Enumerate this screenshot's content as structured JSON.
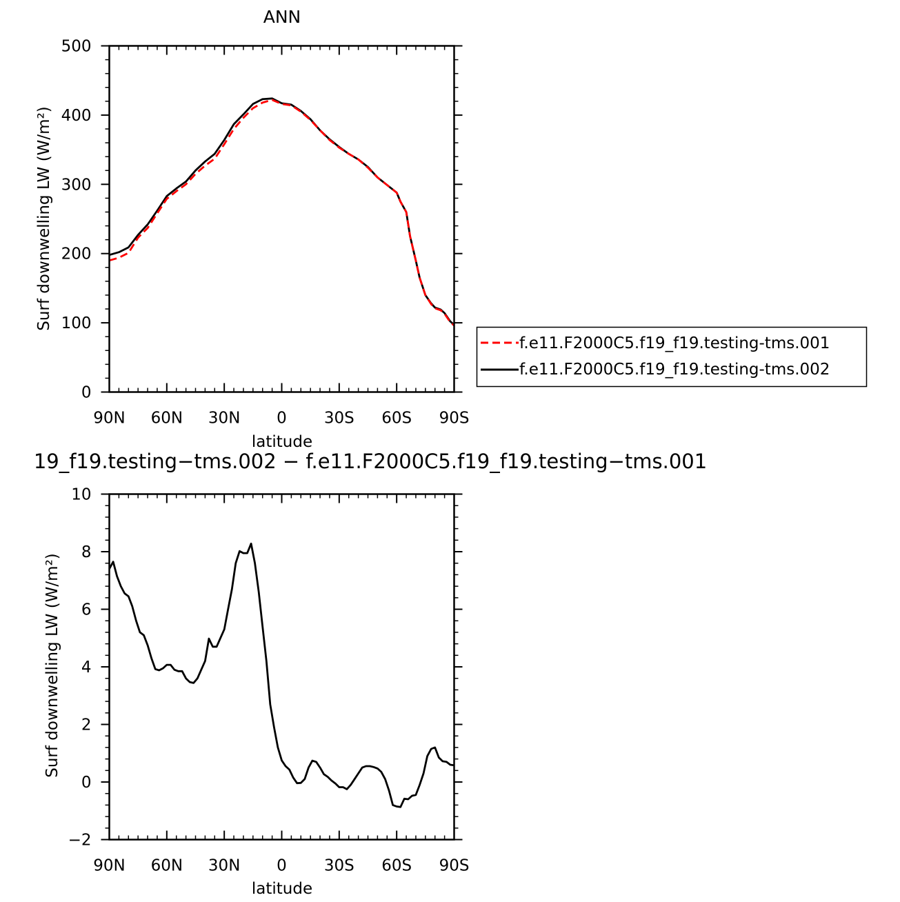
{
  "chart_data": [
    {
      "type": "line",
      "title": "ANN",
      "xlabel": "latitude",
      "ylabel": "Surf downwelling LW (W/m²)",
      "xlim": [
        90,
        -90
      ],
      "ylim": [
        0,
        500
      ],
      "xticks": [
        90,
        60,
        30,
        0,
        -30,
        -60,
        -90
      ],
      "xtick_labels": [
        "90N",
        "60N",
        "30N",
        "0",
        "30S",
        "60S",
        "90S"
      ],
      "yticks": [
        0,
        100,
        200,
        300,
        400,
        500
      ],
      "ytick_labels": [
        "0",
        "100",
        "200",
        "300",
        "400",
        "500"
      ],
      "grid": false,
      "legend_position": "right",
      "series": [
        {
          "name": "f.e11.F2000C5.f19_f19.testing-tms.001",
          "color": "#ff0000",
          "dash": "dashed",
          "x": [
            90,
            85,
            80,
            75,
            70,
            65,
            60,
            55,
            50,
            45,
            40,
            35,
            30,
            25,
            20,
            15,
            10,
            5,
            0,
            -5,
            -10,
            -15,
            -20,
            -25,
            -30,
            -35,
            -40,
            -45,
            -50,
            -55,
            -60,
            -62,
            -65,
            -67,
            -70,
            -72,
            -75,
            -78,
            -80,
            -83,
            -85,
            -88,
            -90
          ],
          "y": [
            190,
            194,
            201,
            223,
            237,
            258,
            279,
            290,
            300,
            315,
            327,
            337,
            358,
            380,
            396,
            410,
            418,
            422,
            416,
            414,
            405,
            393,
            378,
            364,
            353,
            344,
            336,
            324,
            310,
            299,
            288,
            275,
            260,
            225,
            190,
            165,
            140,
            127,
            121,
            118,
            113,
            101,
            96
          ]
        },
        {
          "name": "f.e11.F2000C5.f19_f19.testing-tms.002",
          "color": "#000000",
          "dash": "solid",
          "x": [
            90,
            85,
            80,
            75,
            70,
            65,
            60,
            55,
            50,
            45,
            40,
            35,
            30,
            25,
            20,
            15,
            10,
            5,
            0,
            -5,
            -10,
            -15,
            -20,
            -25,
            -30,
            -35,
            -40,
            -45,
            -50,
            -55,
            -60,
            -62,
            -65,
            -67,
            -70,
            -72,
            -75,
            -78,
            -80,
            -83,
            -85,
            -88,
            -90
          ],
          "y": [
            198,
            202,
            209,
            227,
            242,
            262,
            283,
            294,
            304,
            320,
            333,
            344,
            364,
            387,
            401,
            416,
            423,
            424,
            417,
            415,
            406,
            394,
            378,
            365,
            354,
            344,
            336,
            325,
            310,
            299,
            288,
            275,
            260,
            225,
            190,
            165,
            140,
            128,
            122,
            119,
            114,
            102,
            97
          ]
        }
      ]
    },
    {
      "type": "line",
      "title": "19_f19.testing−tms.002 − f.e11.F2000C5.f19_f19.testing−tms.001",
      "xlabel": "latitude",
      "ylabel": "Surf downwelling LW (W/m²)",
      "xlim": [
        90,
        -90
      ],
      "ylim": [
        -2,
        10
      ],
      "xticks": [
        90,
        60,
        30,
        0,
        -30,
        -60,
        -90
      ],
      "xtick_labels": [
        "90N",
        "60N",
        "30N",
        "0",
        "30S",
        "60S",
        "90S"
      ],
      "yticks": [
        -2,
        0,
        2,
        4,
        6,
        8,
        10
      ],
      "ytick_labels": [
        "−2",
        "0",
        "2",
        "4",
        "6",
        "8",
        "10"
      ],
      "grid": false,
      "series": [
        {
          "color": "#000000",
          "dash": "solid",
          "x": [
            90,
            88,
            86,
            84,
            82,
            80,
            78,
            76,
            74,
            72,
            70,
            68,
            66,
            64,
            62,
            60,
            58,
            56,
            54,
            52,
            50,
            48,
            46,
            44,
            42,
            40,
            38,
            36,
            34,
            32,
            30,
            28,
            26,
            24,
            22,
            20,
            18,
            16,
            14,
            12,
            10,
            8,
            6,
            4,
            2,
            0,
            -2,
            -4,
            -6,
            -8,
            -10,
            -12,
            -14,
            -16,
            -18,
            -20,
            -22,
            -24,
            -26,
            -28,
            -30,
            -32,
            -34,
            -36,
            -38,
            -40,
            -42,
            -44,
            -46,
            -48,
            -50,
            -52,
            -54,
            -56,
            -58,
            -60,
            -62,
            -64,
            -66,
            -68,
            -70,
            -72,
            -74,
            -76,
            -78,
            -80,
            -82,
            -84,
            -86,
            -88,
            -90
          ],
          "y": [
            7.4,
            7.65,
            7.15,
            6.8,
            6.55,
            6.45,
            6.1,
            5.6,
            5.2,
            5.1,
            4.75,
            4.3,
            3.92,
            3.88,
            3.95,
            4.07,
            4.07,
            3.9,
            3.85,
            3.85,
            3.6,
            3.47,
            3.44,
            3.6,
            3.9,
            4.2,
            4.98,
            4.7,
            4.7,
            5.0,
            5.3,
            6.0,
            6.7,
            7.6,
            8.02,
            7.95,
            7.95,
            8.28,
            7.6,
            6.6,
            5.4,
            4.2,
            2.7,
            1.9,
            1.2,
            0.75,
            0.55,
            0.43,
            0.15,
            -0.04,
            -0.03,
            0.1,
            0.5,
            0.74,
            0.7,
            0.5,
            0.27,
            0.18,
            0.05,
            -0.05,
            -0.18,
            -0.18,
            -0.25,
            -0.1,
            0.1,
            0.3,
            0.5,
            0.55,
            0.55,
            0.52,
            0.47,
            0.35,
            0.1,
            -0.3,
            -0.8,
            -0.85,
            -0.87,
            -0.58,
            -0.6,
            -0.48,
            -0.45,
            -0.1,
            0.3,
            0.9,
            1.15,
            1.2,
            0.85,
            0.72,
            0.7,
            0.6,
            0.58
          ]
        }
      ]
    }
  ]
}
